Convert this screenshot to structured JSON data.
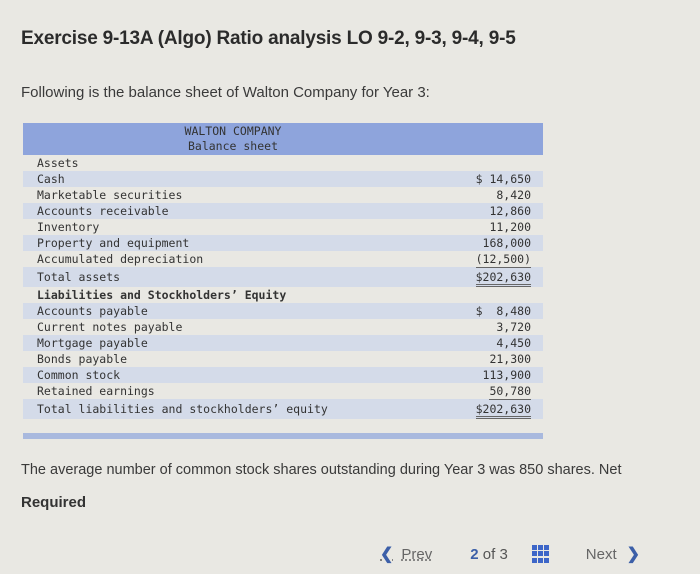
{
  "header": {
    "title": "Exercise 9-13A (Algo) Ratio analysis LO 9-2, 9-3, 9-4, 9-5",
    "intro": "Following is the balance sheet of Walton Company for Year 3:"
  },
  "balance_sheet": {
    "company": "WALTON COMPANY",
    "subtitle": "Balance sheet",
    "assets_heading": "Assets",
    "assets": [
      {
        "label": "Cash",
        "value": "$ 14,650"
      },
      {
        "label": "Marketable securities",
        "value": "8,420"
      },
      {
        "label": "Accounts receivable",
        "value": "12,860"
      },
      {
        "label": "Inventory",
        "value": "11,200"
      },
      {
        "label": "Property and equipment",
        "value": "168,000"
      },
      {
        "label": "Accumulated depreciation",
        "value": "(12,500)"
      }
    ],
    "total_assets": {
      "label": "Total assets",
      "value": "$202,630"
    },
    "liabilities_heading": "Liabilities and Stockholders’ Equity",
    "liabilities": [
      {
        "label": "Accounts payable",
        "value": "$  8,480"
      },
      {
        "label": "Current notes payable",
        "value": "3,720"
      },
      {
        "label": "Mortgage payable",
        "value": "4,450"
      },
      {
        "label": "Bonds payable",
        "value": "21,300"
      },
      {
        "label": "Common stock",
        "value": "113,900"
      },
      {
        "label": "Retained earnings",
        "value": "50,780"
      }
    ],
    "total_liabilities": {
      "label": "Total liabilities and stockholders’ equity",
      "value": "$202,630"
    }
  },
  "body": {
    "paragraph": "The average number of common stock shares outstanding during Year 3 was 850 shares. Net",
    "required": "Required"
  },
  "pager": {
    "prev_label": "Prev",
    "current": "2",
    "of_label": "of 3",
    "next_label": "Next",
    "icons": {
      "prev": "chevron-left-icon",
      "grid": "grid-icon",
      "next": "chevron-right-icon"
    },
    "accent_color": "#3d66c8"
  }
}
